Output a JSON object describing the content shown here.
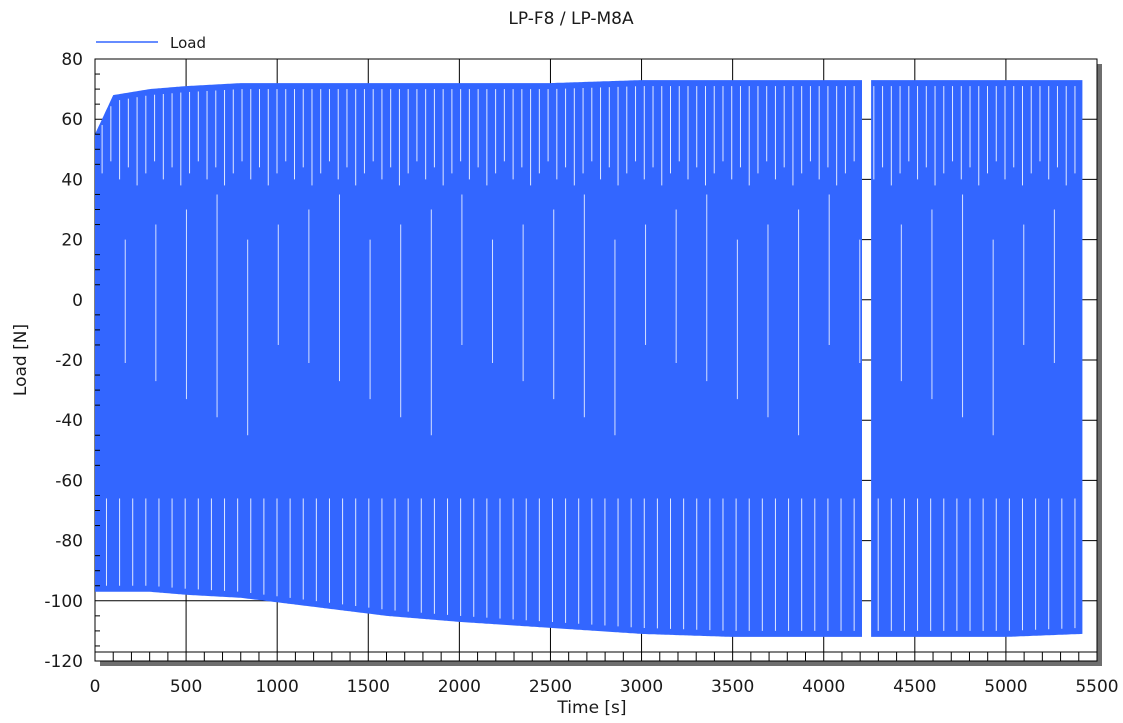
{
  "chart_data": {
    "type": "line",
    "title": "LP-F8 / LP-M8A",
    "xlabel": "Time [s]",
    "ylabel": "Load [N]",
    "xlim": [
      0,
      5500
    ],
    "ylim": [
      -120,
      80
    ],
    "x_ticks": [
      0,
      500,
      1000,
      1500,
      2000,
      2500,
      3000,
      3500,
      4000,
      4500,
      5000,
      5500
    ],
    "y_ticks": [
      80,
      60,
      40,
      20,
      0,
      -20,
      -40,
      -60,
      -80,
      -100,
      -120
    ],
    "grid": true,
    "legend": {
      "position": "top-left",
      "entries": [
        "Load"
      ]
    },
    "series": [
      {
        "name": "Load",
        "color": "#3366ff",
        "x_range": [
          0,
          5420
        ],
        "gap": [
          4210,
          4260
        ],
        "envelope_x": [
          0,
          100,
          300,
          500,
          800,
          1200,
          1600,
          2000,
          2500,
          3000,
          3500,
          4000,
          4200,
          4260,
          4500,
          5000,
          5420
        ],
        "envelope_max": [
          55,
          68,
          70,
          71,
          72,
          72,
          72,
          72,
          72,
          73,
          73,
          73,
          73,
          73,
          73,
          73,
          73
        ],
        "envelope_min": [
          -97,
          -97,
          -97,
          -98,
          -99,
          -102,
          -105,
          -107,
          -109,
          -111,
          -112,
          -112,
          -112,
          -112,
          -112,
          -112,
          -111
        ]
      }
    ]
  }
}
